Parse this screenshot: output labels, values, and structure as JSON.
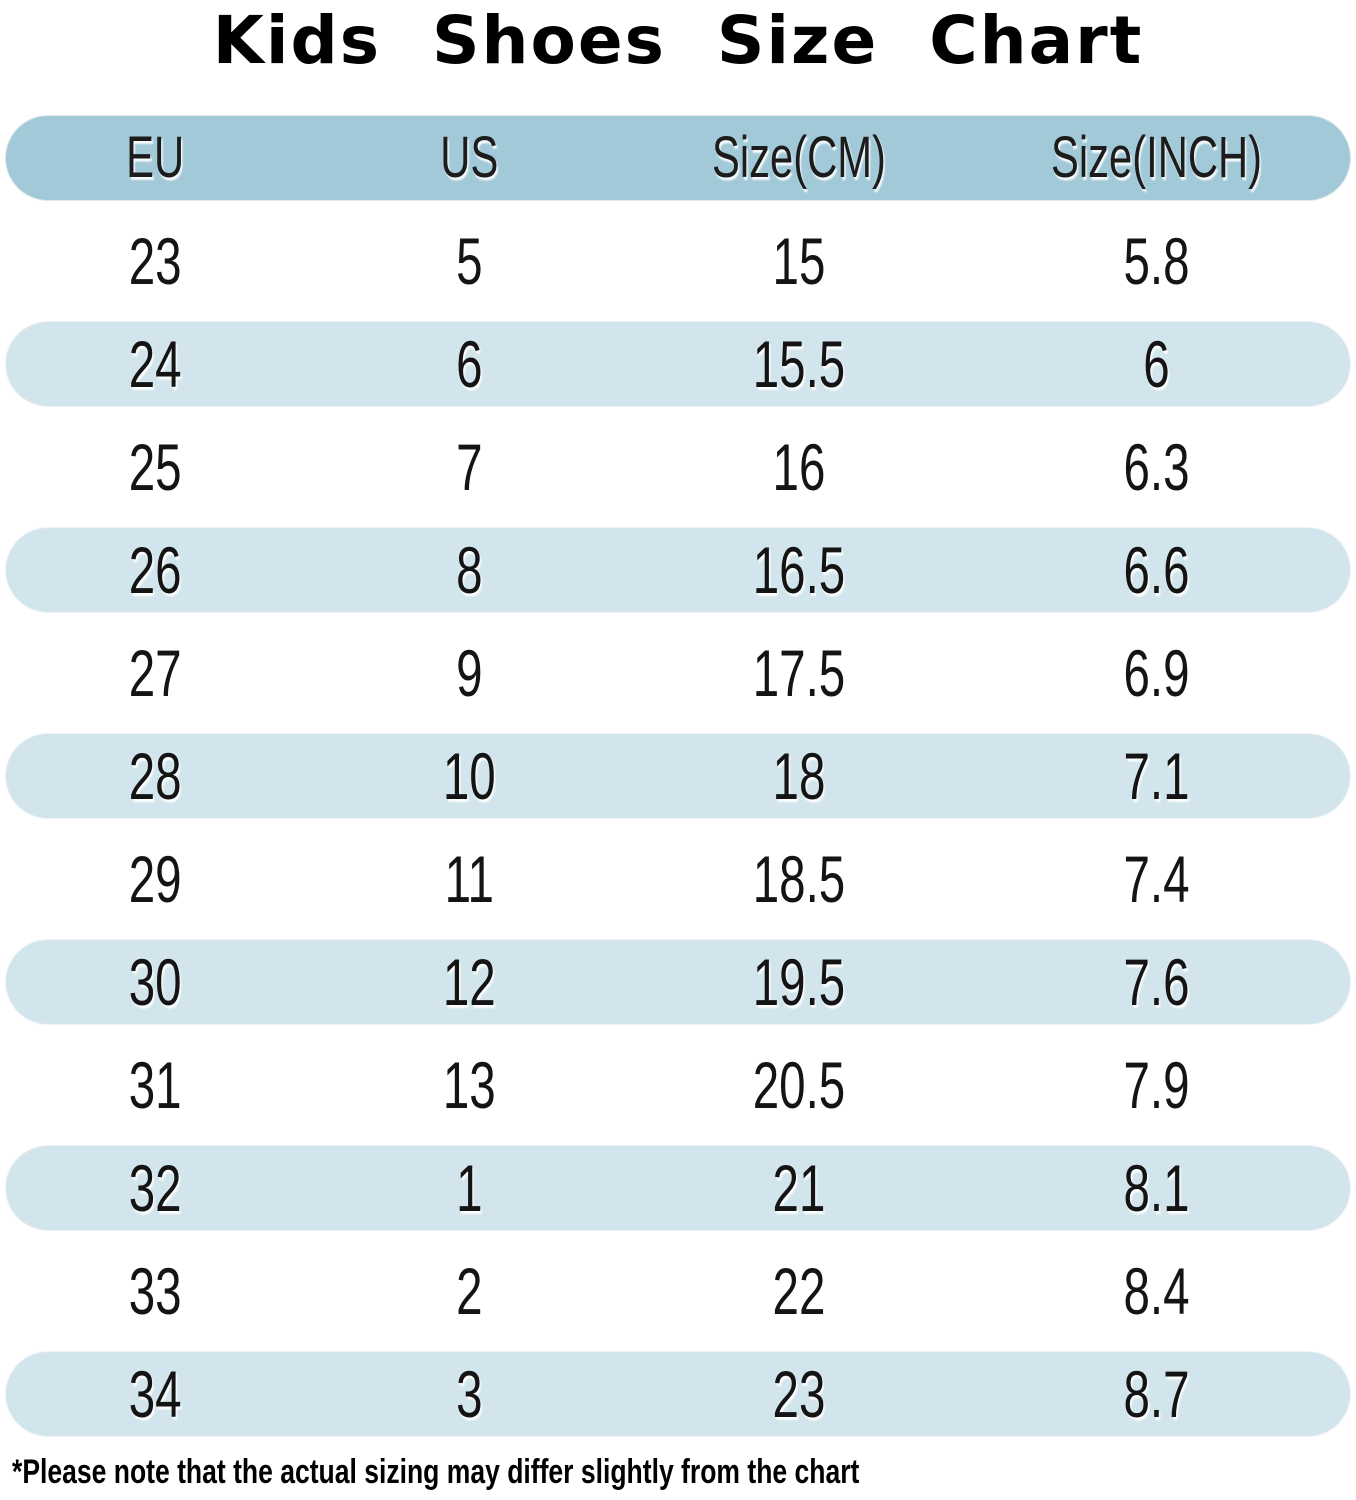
{
  "title": "Kids Shoes Size Chart",
  "colors": {
    "header_bg": "#a2c9d8",
    "stripe_bg": "#d2e5ec",
    "text": "#141414",
    "background": "#ffffff"
  },
  "table": {
    "headers": [
      "EU",
      "US",
      "Size(CM)",
      "Size(INCH)"
    ],
    "rows": [
      [
        "23",
        "5",
        "15",
        "5.8"
      ],
      [
        "24",
        "6",
        "15.5",
        "6"
      ],
      [
        "25",
        "7",
        "16",
        "6.3"
      ],
      [
        "26",
        "8",
        "16.5",
        "6.6"
      ],
      [
        "27",
        "9",
        "17.5",
        "6.9"
      ],
      [
        "28",
        "10",
        "18",
        "7.1"
      ],
      [
        "29",
        "11",
        "18.5",
        "7.4"
      ],
      [
        "30",
        "12",
        "19.5",
        "7.6"
      ],
      [
        "31",
        "13",
        "20.5",
        "7.9"
      ],
      [
        "32",
        "1",
        "21",
        "8.1"
      ],
      [
        "33",
        "2",
        "22",
        "8.4"
      ],
      [
        "34",
        "3",
        "23",
        "8.7"
      ]
    ]
  },
  "footnote": "*Please note that the actual sizing may differ slightly from the chart",
  "chart_data": {
    "type": "table",
    "title": "Kids Shoes Size Chart",
    "columns": [
      "EU",
      "US",
      "Size(CM)",
      "Size(INCH)"
    ],
    "rows": [
      [
        23,
        5,
        15,
        5.8
      ],
      [
        24,
        6,
        15.5,
        6
      ],
      [
        25,
        7,
        16,
        6.3
      ],
      [
        26,
        8,
        16.5,
        6.6
      ],
      [
        27,
        9,
        17.5,
        6.9
      ],
      [
        28,
        10,
        18,
        7.1
      ],
      [
        29,
        11,
        18.5,
        7.4
      ],
      [
        30,
        12,
        19.5,
        7.6
      ],
      [
        31,
        13,
        20.5,
        7.9
      ],
      [
        32,
        1,
        21,
        8.1
      ],
      [
        33,
        2,
        22,
        8.4
      ],
      [
        34,
        3,
        23,
        8.7
      ]
    ],
    "layout_hints": {
      "header_style": "solid blue pill",
      "row_style": "alternating white / light-blue pill rows, fully rounded ends",
      "footnote": "*Please note that the actual sizing may differ slightly from the chart"
    }
  }
}
